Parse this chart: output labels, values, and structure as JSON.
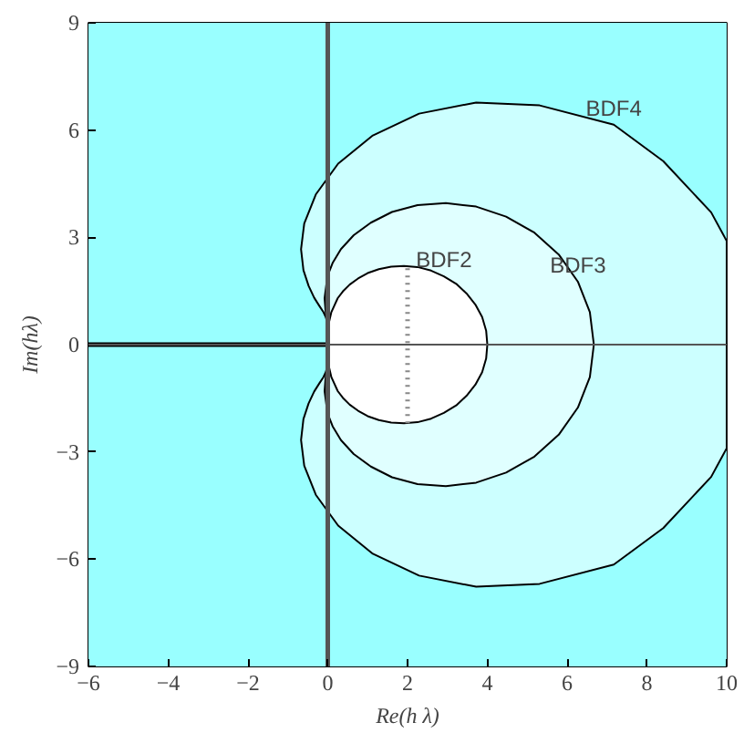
{
  "chart_data": {
    "type": "area",
    "xlabel": "Re(h λ)",
    "ylabel": "Im(hλ)",
    "xlim": [
      -6,
      10
    ],
    "ylim": [
      -9,
      9
    ],
    "xticks": [
      -6,
      -4,
      -2,
      0,
      2,
      4,
      6,
      8,
      10
    ],
    "yticks": [
      -9,
      -6,
      -3,
      0,
      3,
      6,
      9
    ],
    "bands": [
      {
        "axis": "x",
        "from": -6,
        "to": 10,
        "color": "#99ffff"
      }
    ],
    "ref_lines": [
      {
        "axis": "y",
        "value": 0,
        "color": "#555555"
      }
    ],
    "series": [
      {
        "color": "#ccffff",
        "x": [
          0,
          0,
          -0.01,
          -0.02,
          -0.05,
          -0.11,
          -0.21,
          -0.34,
          -0.48,
          -0.61,
          -0.67,
          -0.59,
          -0.3,
          0.26,
          1.13,
          2.29,
          3.72,
          5.31,
          7.17,
          8.41,
          9.61,
          10,
          10,
          9.61,
          8.41,
          7.17,
          5.31,
          3.72,
          2.29,
          1.13,
          0.26,
          -0.3,
          -0.59,
          -0.67,
          -0.61,
          -0.48,
          -0.34,
          -0.21,
          -0.11,
          -0.05,
          -0.02,
          -0.01,
          0,
          0
        ],
        "values": [
          0,
          0.26,
          0.52,
          0.64,
          0.77,
          0.91,
          1.08,
          1.31,
          1.64,
          2.08,
          2.67,
          3.39,
          4.2,
          5.06,
          5.85,
          6.46,
          6.77,
          6.69,
          6.15,
          5.13,
          3.7,
          2.9,
          -2.9,
          -3.7,
          -5.13,
          -6.15,
          -6.69,
          -6.77,
          -6.46,
          -5.85,
          -5.06,
          -4.2,
          -3.39,
          -2.67,
          -2.08,
          -1.64,
          -1.31,
          -1.08,
          -0.91,
          -0.77,
          -0.64,
          -0.52,
          -0.26,
          0
        ]
      },
      {
        "color": "#e0ffff",
        "x": [
          0,
          0,
          -0.01,
          -0.05,
          -0.08,
          -0.01,
          0.12,
          0.33,
          0.65,
          1.08,
          1.61,
          2.25,
          2.96,
          3.72,
          4.47,
          5.18,
          5.79,
          6.27,
          6.57,
          6.67,
          6.57,
          6.27,
          5.79,
          5.18,
          4.47,
          3.72,
          2.96,
          2.25,
          1.61,
          1.08,
          0.65,
          0.33,
          0.12,
          -0.01,
          -0.08,
          -0.05,
          -0.01,
          0,
          0
        ],
        "values": [
          0,
          0.26,
          0.53,
          0.86,
          1.3,
          1.91,
          2.28,
          2.67,
          3.06,
          3.41,
          3.71,
          3.9,
          3.96,
          3.86,
          3.58,
          3.13,
          2.52,
          1.76,
          0.91,
          0,
          -0.91,
          -1.76,
          -2.52,
          -3.13,
          -3.58,
          -3.86,
          -3.96,
          -3.9,
          -3.71,
          -3.41,
          -3.06,
          -2.67,
          -2.28,
          -1.91,
          -1.3,
          -0.86,
          -0.53,
          -0.26,
          0
        ]
      },
      {
        "color": "#ffffff",
        "x": [
          0,
          0,
          0.02,
          0.09,
          0.25,
          0.38,
          0.55,
          0.76,
          1,
          1.28,
          1.59,
          1.91,
          2.25,
          2.59,
          2.91,
          3.22,
          3.48,
          3.7,
          3.87,
          3.97,
          4,
          3.97,
          3.87,
          3.7,
          3.48,
          3.22,
          2.91,
          2.59,
          2.25,
          1.91,
          1.59,
          1.28,
          1,
          0.76,
          0.55,
          0.38,
          0.25,
          0.09,
          0.02,
          0,
          0
        ],
        "values": [
          0,
          0.27,
          0.57,
          0.91,
          1.3,
          1.49,
          1.68,
          1.85,
          2,
          2.11,
          2.18,
          2.2,
          2.17,
          2.07,
          1.91,
          1.7,
          1.43,
          1.12,
          0.77,
          0.39,
          0,
          -0.39,
          -0.77,
          -1.12,
          -1.43,
          -1.7,
          -1.91,
          -2.07,
          -2.17,
          -2.2,
          -2.18,
          -2.11,
          -2,
          -1.85,
          -1.68,
          -1.49,
          -1.3,
          -0.91,
          -0.57,
          -0.27,
          0
        ]
      },
      {
        "type": "line",
        "color": "#888888",
        "line_style": "dotted",
        "x": [
          2,
          2
        ],
        "values": [
          -2.2,
          2.2
        ]
      },
      {
        "type": "line",
        "color": "#000000",
        "line_style": "solid",
        "x": [
          -6,
          0
        ],
        "values": [
          0,
          0
        ]
      },
      {
        "type": "line",
        "color": "#555555",
        "line_style": "solid",
        "x": [
          0,
          0
        ],
        "values": [
          -9,
          9
        ]
      }
    ],
    "annotations": [
      {
        "text": "BDF2",
        "x": 2.91,
        "y": 1.91
      },
      {
        "text": "BDF3",
        "x": 6.27,
        "y": 1.76
      },
      {
        "text": "BDF4",
        "x": 7.17,
        "y": 6.15
      }
    ]
  }
}
